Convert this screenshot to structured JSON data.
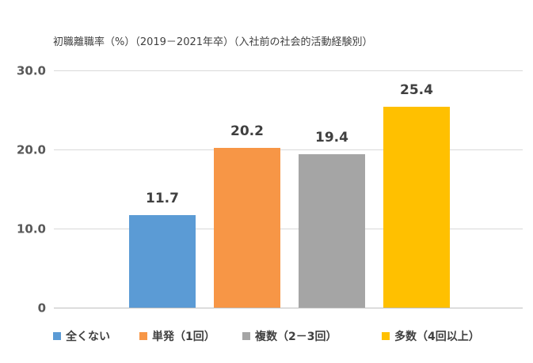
{
  "chart_data": {
    "type": "bar",
    "title": "初職離職率（%）（2019－2021年卒）（入社前の社会的活動経験別）",
    "categories": [
      "全くない",
      "単発（1回）",
      "複数（2－3回）",
      "多数（4回以上）"
    ],
    "values": [
      11.7,
      20.2,
      19.4,
      25.4
    ],
    "data_labels": [
      "11.7",
      "20.2",
      "19.4",
      "25.4"
    ],
    "colors": [
      "#5B9BD5",
      "#F79646",
      "#A5A5A5",
      "#FFC000"
    ],
    "ylim": [
      0,
      30
    ],
    "yticks": [
      0,
      10,
      20,
      30
    ],
    "ytick_labels": [
      "0",
      "10.0",
      "20.0",
      "30.0"
    ],
    "xlabel": "",
    "ylabel": "",
    "grid": true,
    "legend_position": "bottom"
  }
}
